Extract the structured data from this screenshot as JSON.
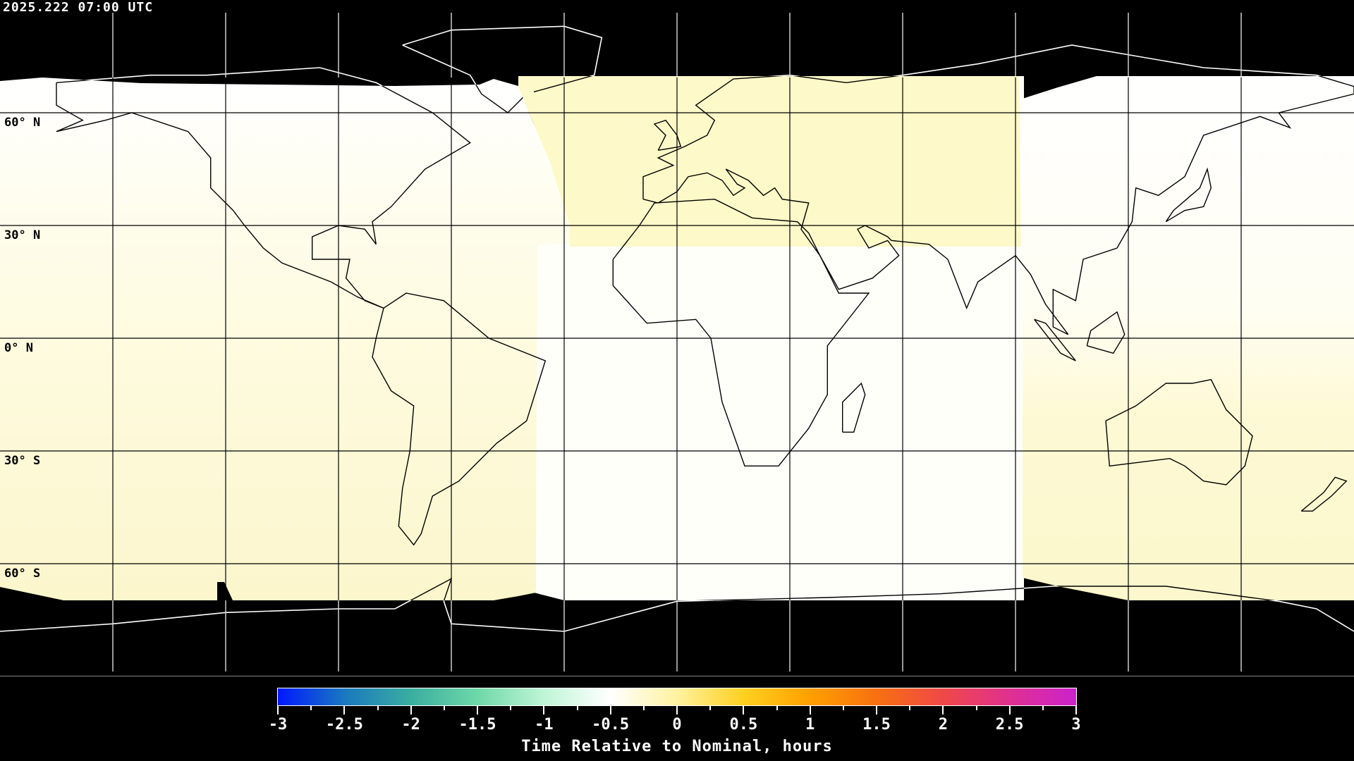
{
  "header": {
    "timestamp": "2025.222 07:00 UTC"
  },
  "map": {
    "projection": "equirectangular",
    "lat_labels": [
      "60° N",
      "30° N",
      "0° N",
      "30° S",
      "60° S"
    ],
    "gridline_spacing_deg": 30,
    "colors": {
      "no_data": "#000000",
      "near_zero": "#fffffa",
      "slight_positive": "#fdf9c8",
      "gridline": "#000000"
    }
  },
  "colorbar": {
    "title": "Time Relative to Nominal, hours",
    "min": -3,
    "max": 3,
    "tick_labels": [
      "-3",
      "-2.5",
      "-2",
      "-1.5",
      "-1",
      "-0.5",
      "0",
      "0.5",
      "1",
      "1.5",
      "2",
      "2.5",
      "3"
    ],
    "color_stops": [
      "#0018ff",
      "#1a78c0",
      "#3aaea0",
      "#6ed8a8",
      "#bff5d6",
      "#ffffff",
      "#fff2a0",
      "#ffd020",
      "#ffa000",
      "#f87010",
      "#f04848",
      "#e03090",
      "#cc22cc"
    ]
  }
}
